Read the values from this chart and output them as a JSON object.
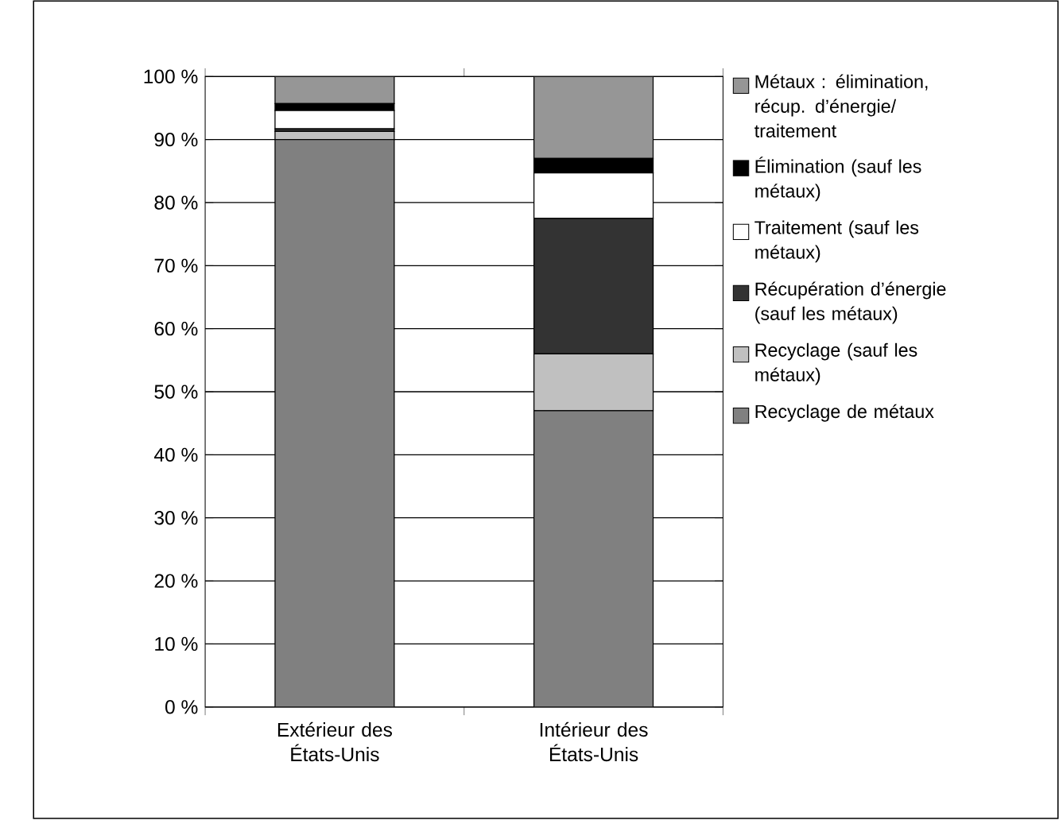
{
  "chart_data": {
    "type": "bar",
    "stacked": true,
    "categories": [
      "Extérieur des États-Unis",
      "Intérieur des États-Unis"
    ],
    "series": [
      {
        "name": "Recyclage de métaux",
        "color": "#808080",
        "values": [
          90,
          47
        ]
      },
      {
        "name": "Recyclage (sauf les métaux)",
        "color": "#c0c0c0",
        "values": [
          1.3,
          9
        ]
      },
      {
        "name": "Récupération d’énergie (sauf les métaux)",
        "color": "#333333",
        "values": [
          0.4,
          21.5
        ]
      },
      {
        "name": "Traitement (sauf les métaux)",
        "color": "#ffffff",
        "values": [
          2.9,
          7.2
        ]
      },
      {
        "name": "Élimination (sauf les métaux)",
        "color": "#000000",
        "values": [
          1.1,
          2.3
        ]
      },
      {
        "name": "Métaux : élimination, récup. d’énergie/ traitement",
        "color": "#969696",
        "values": [
          4.3,
          13
        ]
      }
    ],
    "ylim": [
      0,
      100
    ],
    "yticks": [
      {
        "value": 0,
        "label": "0 %"
      },
      {
        "value": 10,
        "label": "10 %"
      },
      {
        "value": 20,
        "label": "20 %"
      },
      {
        "value": 30,
        "label": "30 %"
      },
      {
        "value": 40,
        "label": "40 %"
      },
      {
        "value": 50,
        "label": "50 %"
      },
      {
        "value": 60,
        "label": "60 %"
      },
      {
        "value": 70,
        "label": "70 %"
      },
      {
        "value": 80,
        "label": "80 %"
      },
      {
        "value": 90,
        "label": "90 %"
      },
      {
        "value": 100,
        "label": "100 %"
      }
    ],
    "grid": "y",
    "legend": "right"
  }
}
